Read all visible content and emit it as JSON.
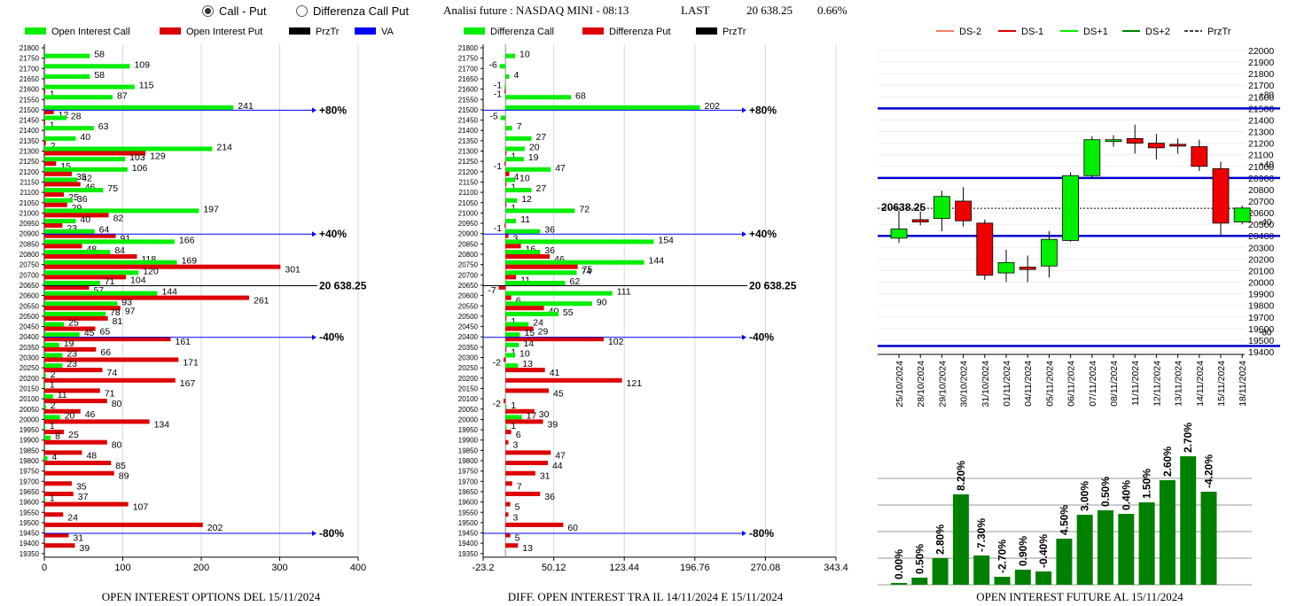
{
  "header": {
    "radio_call_put": "Call - Put",
    "radio_diff": "Differenza Call Put",
    "title": "Analisi future : NASDAQ MINI - 08:13",
    "last_label": "LAST",
    "last_value": "20 638.25",
    "change": "0.66%"
  },
  "colors": {
    "green": "#00ee00",
    "red": "#dd0000",
    "dark_green": "#008000",
    "blue": "#0000cc"
  },
  "chart_data": [
    {
      "type": "bar",
      "orientation": "horizontal",
      "title": "OPEN INTEREST OPTIONS DEL 15/11/2024",
      "legend": [
        "Open Interest Call",
        "Open Interest Put",
        "PrzTr",
        "VA"
      ],
      "legend_colors": [
        "#00ee00",
        "#dd0000",
        "#000000",
        "#0000ff"
      ],
      "strikes": [
        21800,
        21750,
        21700,
        21650,
        21600,
        21550,
        21500,
        21450,
        21400,
        21350,
        21300,
        21250,
        21200,
        21150,
        21100,
        21050,
        21000,
        20950,
        20900,
        20850,
        20800,
        20750,
        20700,
        20650,
        20600,
        20550,
        20500,
        20450,
        20400,
        20350,
        20300,
        20250,
        20200,
        20150,
        20100,
        20050,
        20000,
        19950,
        19900,
        19850,
        19800,
        19750,
        19700,
        19650,
        19600,
        19550,
        19500,
        19450,
        19400,
        19350
      ],
      "call": [
        null,
        58,
        109,
        58,
        115,
        87,
        241,
        28,
        63,
        40,
        214,
        103,
        106,
        42,
        75,
        36,
        197,
        40,
        64,
        166,
        84,
        169,
        120,
        71,
        144,
        93,
        78,
        25,
        45,
        19,
        23,
        23,
        2,
        1,
        11,
        2,
        20,
        1,
        8,
        null,
        4,
        null,
        null,
        null,
        1,
        null,
        null,
        null,
        null,
        null
      ],
      "put": [
        null,
        null,
        null,
        null,
        1,
        null,
        12,
        1,
        null,
        2,
        129,
        15,
        35,
        46,
        25,
        29,
        82,
        23,
        91,
        48,
        118,
        301,
        104,
        57,
        261,
        97,
        81,
        65,
        161,
        66,
        171,
        74,
        167,
        71,
        80,
        46,
        134,
        25,
        80,
        48,
        85,
        89,
        35,
        37,
        107,
        24,
        202,
        31,
        39,
        null
      ],
      "xlim": [
        0,
        400
      ],
      "xticks": [
        0,
        100,
        200,
        300,
        400
      ],
      "lines": [
        {
          "strike": 21500,
          "label": "80%",
          "color": "#0000ff"
        },
        {
          "strike": 20900,
          "label": "40%",
          "color": "#0000ff"
        },
        {
          "strike": 20650,
          "label": "20 638.25",
          "color": "#000000"
        },
        {
          "strike": 20400,
          "label": "-40%",
          "color": "#0000ff"
        },
        {
          "strike": 19450,
          "label": "-80%",
          "color": "#0000ff"
        }
      ]
    },
    {
      "type": "bar",
      "orientation": "horizontal",
      "title": "DIFF. OPEN INTEREST TRA IL 14/11/2024 E 15/11/2024",
      "legend": [
        "Differenza Call",
        "Differenza Put",
        "PrzTr"
      ],
      "legend_colors": [
        "#00ee00",
        "#dd0000",
        "#000000"
      ],
      "strikes": [
        21800,
        21750,
        21700,
        21650,
        21600,
        21550,
        21500,
        21450,
        21400,
        21350,
        21300,
        21250,
        21200,
        21150,
        21100,
        21050,
        21000,
        20950,
        20900,
        20850,
        20800,
        20750,
        20700,
        20650,
        20600,
        20550,
        20500,
        20450,
        20400,
        20350,
        20300,
        20250,
        20200,
        20150,
        20100,
        20050,
        20000,
        19950,
        19900,
        19850,
        19800,
        19750,
        19700,
        19650,
        19600,
        19550,
        19500,
        19450,
        19400,
        19350
      ],
      "call": [
        null,
        10,
        -6,
        4,
        -1,
        68,
        202,
        -5,
        7,
        27,
        20,
        19,
        47,
        10,
        27,
        12,
        72,
        11,
        36,
        154,
        36,
        144,
        74,
        62,
        111,
        90,
        55,
        24,
        15,
        14,
        10,
        13,
        null,
        null,
        null,
        1,
        17,
        1,
        null,
        null,
        null,
        null,
        null,
        null,
        null,
        null,
        null,
        null,
        null,
        null
      ],
      "put": [
        null,
        null,
        null,
        null,
        -1,
        null,
        null,
        null,
        null,
        null,
        1,
        -1,
        4,
        1,
        null,
        1,
        null,
        -1,
        3,
        16,
        46,
        75,
        11,
        -7,
        6,
        40,
        1,
        29,
        102,
        1,
        -2,
        41,
        121,
        45,
        -2,
        30,
        39,
        6,
        3,
        47,
        44,
        31,
        7,
        36,
        5,
        3,
        60,
        5,
        13,
        null
      ],
      "xlim": [
        -23.2,
        343.4
      ],
      "xticks": [
        -23.2,
        50.12,
        123.44,
        196.76,
        270.08,
        343.4
      ],
      "lines": [
        {
          "strike": 21500,
          "label": "80%",
          "color": "#0000ff"
        },
        {
          "strike": 20900,
          "label": "40%",
          "color": "#0000ff"
        },
        {
          "strike": 20650,
          "label": "20 638.25",
          "color": "#000000"
        },
        {
          "strike": 20400,
          "label": "-40%",
          "color": "#0000ff"
        },
        {
          "strike": 19450,
          "label": "-80%",
          "color": "#0000ff"
        }
      ]
    },
    {
      "type": "candlestick",
      "legend": [
        "DS-2",
        "DS-1",
        "DS+1",
        "DS+2",
        "PrzTr"
      ],
      "legend_colors": [
        "#f08060",
        "#dd0000",
        "#00ee00",
        "#008000",
        "#000000"
      ],
      "dates": [
        "25/10/2024",
        "28/10/2024",
        "29/10/2024",
        "30/10/2024",
        "31/10/2024",
        "01/11/2024",
        "04/11/2024",
        "05/11/2024",
        "06/11/2024",
        "07/11/2024",
        "08/11/2024",
        "11/11/2024",
        "12/11/2024",
        "13/11/2024",
        "14/11/2024",
        "15/11/2024",
        "18/11/2024"
      ],
      "open": [
        20380,
        20540,
        20550,
        20700,
        20510,
        20080,
        20130,
        20140,
        20360,
        20920,
        21230,
        21240,
        21200,
        21190,
        21170,
        20980,
        20520
      ],
      "close": [
        20460,
        20520,
        20740,
        20530,
        20060,
        20170,
        20110,
        20370,
        20920,
        21230,
        21230,
        21200,
        21160,
        21180,
        21000,
        20510,
        20640
      ],
      "high": [
        20620,
        20610,
        20790,
        20820,
        20540,
        20280,
        20230,
        20440,
        20950,
        21260,
        21270,
        21360,
        21280,
        21240,
        21230,
        21040,
        20660
      ],
      "low": [
        20340,
        20490,
        20440,
        20480,
        20020,
        20000,
        20000,
        20040,
        20350,
        20900,
        21170,
        21110,
        21060,
        21110,
        20960,
        20400,
        20500
      ],
      "ylim": [
        19400,
        22000
      ],
      "yticks": [
        19400,
        19500,
        19600,
        19700,
        19800,
        19900,
        20000,
        20100,
        20200,
        20300,
        20400,
        20500,
        20600,
        20700,
        20800,
        20900,
        21000,
        21100,
        21200,
        21300,
        21400,
        21500,
        21600,
        21700,
        21800,
        21900,
        22000
      ],
      "last_label": "20638.25",
      "last_value": 20638.25,
      "lines": [
        {
          "y": 21500,
          "label": "+80"
        },
        {
          "y": 20900,
          "label": "+40"
        },
        {
          "y": 20400,
          "label": "-40"
        },
        {
          "y": 19450,
          "label": "-80"
        }
      ]
    },
    {
      "type": "bar",
      "title": "OPEN INTEREST FUTURE AL 15/11/2024",
      "labels": [
        "0.00%",
        "0.50%",
        "2.80%",
        "8.20%",
        "-7.30%",
        "-2.70%",
        "0.90%",
        "-0.40%",
        "4.50%",
        "3.00%",
        "0.50%",
        "0.40%",
        "1.50%",
        "2.60%",
        "2.70%",
        "-4.20%"
      ],
      "values": [
        2,
        8,
        30,
        102,
        33,
        9,
        17,
        15,
        52,
        79,
        84,
        80,
        93,
        118,
        145,
        105
      ],
      "ylim": [
        0,
        150
      ]
    }
  ]
}
